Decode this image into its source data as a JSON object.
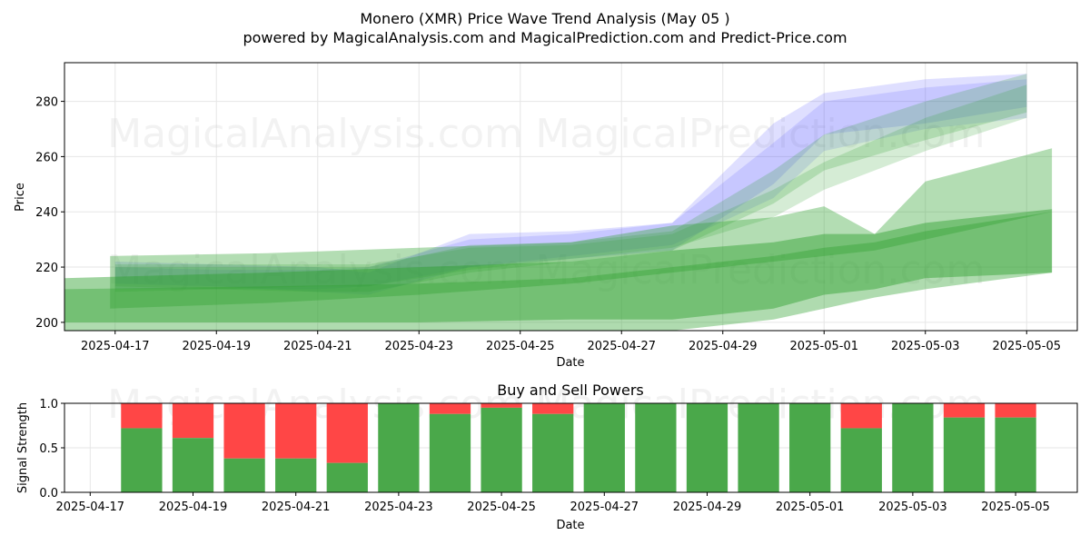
{
  "title_line1": "Monero (XMR) Price Wave Trend Analysis (May 05 )",
  "title_line2": "powered by MagicalAnalysis.com and MagicalPrediction.com and Predict-Price.com",
  "watermarks": [
    "MagicalAnalysis.com",
    "MagicalPrediction.com"
  ],
  "colors": {
    "blue": "#3b3bff",
    "green": "#2ca02c",
    "buy": "#4aa84a",
    "sell": "#ff4646"
  },
  "chart_data": [
    {
      "type": "area",
      "title": "",
      "xlabel": "Date",
      "ylabel": "Price",
      "xlim": [
        "2025-04-16",
        "2025-05-06"
      ],
      "ylim": [
        197,
        294
      ],
      "grid": true,
      "x_ticks": [
        "2025-04-17",
        "2025-04-19",
        "2025-04-21",
        "2025-04-23",
        "2025-04-25",
        "2025-04-27",
        "2025-04-29",
        "2025-05-01",
        "2025-05-03",
        "2025-05-05"
      ],
      "y_ticks": [
        200,
        220,
        240,
        260,
        280
      ],
      "series": [
        {
          "color": "blue",
          "x": [
            "2025-04-17",
            "2025-04-19",
            "2025-04-21",
            "2025-04-22",
            "2025-04-24",
            "2025-04-26",
            "2025-04-28",
            "2025-04-30",
            "2025-05-01",
            "2025-05-03",
            "2025-05-05"
          ],
          "lower": [
            214,
            213,
            211,
            210,
            220,
            223,
            226,
            250,
            268,
            272,
            278
          ],
          "upper": [
            222,
            221,
            220,
            218,
            232,
            233,
            236,
            272,
            283,
            288,
            290
          ]
        },
        {
          "color": "blue",
          "x": [
            "2025-04-17",
            "2025-04-19",
            "2025-04-21",
            "2025-04-22",
            "2025-04-24",
            "2025-04-26",
            "2025-04-28",
            "2025-04-30",
            "2025-05-01",
            "2025-05-03",
            "2025-05-05"
          ],
          "lower": [
            212,
            212,
            212,
            213,
            220,
            224,
            228,
            245,
            262,
            270,
            274
          ],
          "upper": [
            220,
            219,
            219,
            220,
            230,
            232,
            236,
            265,
            280,
            285,
            288
          ]
        },
        {
          "color": "green",
          "x": [
            "2025-04-17",
            "2025-04-19",
            "2025-04-21",
            "2025-04-22",
            "2025-04-24",
            "2025-04-26",
            "2025-04-28",
            "2025-04-30",
            "2025-05-01",
            "2025-05-03",
            "2025-05-05"
          ],
          "lower": [
            211,
            212,
            211,
            211,
            218,
            222,
            226,
            243,
            255,
            266,
            276
          ],
          "upper": [
            220,
            220,
            220,
            220,
            228,
            229,
            233,
            255,
            268,
            280,
            290
          ]
        },
        {
          "color": "green",
          "x": [
            "2025-04-17",
            "2025-04-19",
            "2025-04-21",
            "2025-04-22",
            "2025-04-24",
            "2025-04-26",
            "2025-04-28",
            "2025-04-30",
            "2025-05-01",
            "2025-05-03",
            "2025-05-05"
          ],
          "lower": [
            213,
            212,
            213,
            213,
            219,
            223,
            227,
            238,
            248,
            262,
            274
          ],
          "upper": [
            221,
            221,
            221,
            221,
            227,
            228,
            232,
            248,
            258,
            274,
            286
          ]
        },
        {
          "color": "green",
          "x": [
            "2025-04-16.9",
            "2025-04-20",
            "2025-04-23",
            "2025-04-26",
            "2025-04-28",
            "2025-04-30",
            "2025-05-01",
            "2025-05-02",
            "2025-05-03",
            "2025-05-05.5"
          ],
          "lower": [
            205,
            207,
            210,
            214,
            218,
            222,
            224,
            226,
            230,
            240
          ],
          "upper": [
            224,
            225,
            227,
            229,
            235,
            238,
            242,
            232,
            251,
            263
          ]
        },
        {
          "color": "green",
          "x": [
            "2025-04-16",
            "2025-04-20",
            "2025-04-23",
            "2025-04-26",
            "2025-04-28",
            "2025-04-30",
            "2025-05-01",
            "2025-05-02",
            "2025-05-03",
            "2025-05-05.5"
          ],
          "lower": [
            200,
            200,
            200,
            201,
            201,
            205,
            210,
            212,
            216,
            218
          ],
          "upper": [
            216,
            218,
            220,
            222,
            226,
            229,
            232,
            232,
            236,
            241
          ]
        },
        {
          "color": "green",
          "x": [
            "2025-04-16",
            "2025-04-20",
            "2025-04-23",
            "2025-04-26",
            "2025-04-28",
            "2025-04-30",
            "2025-05-01",
            "2025-05-02",
            "2025-05-03",
            "2025-05-05.5"
          ],
          "lower": [
            197,
            197,
            197,
            197,
            197,
            201,
            205,
            209,
            212,
            218
          ],
          "upper": [
            212,
            213,
            214,
            216,
            220,
            224,
            227,
            229,
            233,
            240
          ]
        }
      ]
    },
    {
      "type": "bar",
      "title": "Buy and Sell Powers",
      "xlabel": "Date",
      "ylabel": "Signal Strength",
      "xlim": [
        "2025-04-16.5",
        "2025-05-06.2"
      ],
      "ylim": [
        0,
        1
      ],
      "grid": true,
      "x_ticks": [
        "2025-04-17",
        "2025-04-19",
        "2025-04-21",
        "2025-04-23",
        "2025-04-25",
        "2025-04-27",
        "2025-04-29",
        "2025-05-01",
        "2025-05-03",
        "2025-05-05"
      ],
      "y_ticks": [
        "0.0",
        "0.5",
        "1.0"
      ],
      "categories": [
        "2025-04-18",
        "2025-04-19",
        "2025-04-20",
        "2025-04-21",
        "2025-04-22",
        "2025-04-23",
        "2025-04-24",
        "2025-04-25",
        "2025-04-26",
        "2025-04-27",
        "2025-04-28",
        "2025-04-29",
        "2025-04-30",
        "2025-05-01",
        "2025-05-02",
        "2025-05-03",
        "2025-05-04",
        "2025-05-05"
      ],
      "buy": [
        0.72,
        0.61,
        0.38,
        0.38,
        0.33,
        1.0,
        0.88,
        0.95,
        0.88,
        1.0,
        1.0,
        1.0,
        1.0,
        1.0,
        0.72,
        1.0,
        0.84,
        0.84
      ]
    }
  ]
}
